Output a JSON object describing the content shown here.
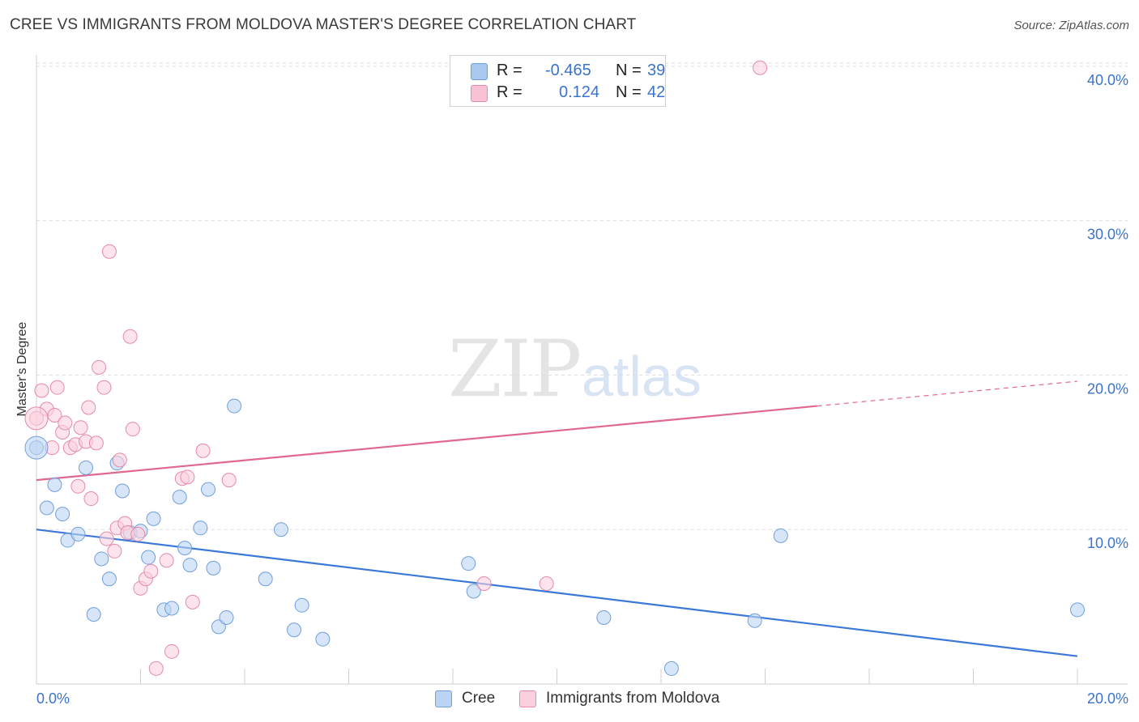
{
  "title": "CREE VS IMMIGRANTS FROM MOLDOVA MASTER'S DEGREE CORRELATION CHART",
  "source": "Source: ZipAtlas.com",
  "watermark": {
    "zip": "ZIP",
    "atlas": "atlas"
  },
  "legend_top": {
    "rows": [
      {
        "r_label": "R =",
        "r_value": "-0.465",
        "n_label": "N =",
        "n_value": "39",
        "color": "#a9c8f0",
        "border": "#6f9fdc"
      },
      {
        "r_label": "R =",
        "r_value": "0.124",
        "n_label": "N =",
        "n_value": "42",
        "color": "#f8c2d3",
        "border": "#e58aa8"
      }
    ]
  },
  "legend_bottom": [
    {
      "label": "Cree",
      "color": "#bcd4f4",
      "border": "#6f9fdc"
    },
    {
      "label": "Immigrants from Moldova",
      "color": "#fbd0de",
      "border": "#e58aa8"
    }
  ],
  "chart_data": {
    "type": "scatter",
    "title": "CREE VS IMMIGRANTS FROM MOLDOVA MASTER'S DEGREE CORRELATION CHART",
    "xlabel": "",
    "ylabel": "Master's Degree",
    "xlim": [
      0,
      20
    ],
    "ylim": [
      0,
      40
    ],
    "x_tick_labels": [
      "0.0%",
      "20.0%"
    ],
    "y_ticks": [
      10,
      20,
      30,
      40
    ],
    "y_tick_labels": [
      "10.0%",
      "20.0%",
      "30.0%",
      "40.0%"
    ],
    "grid": true,
    "series": [
      {
        "name": "Cree",
        "color": "#6f9fdc",
        "fill": "#bcd4f4",
        "trend": {
          "x": [
            0,
            20
          ],
          "y": [
            10.0,
            1.8
          ],
          "color": "#3b78d8",
          "dashed_from": null
        },
        "points": [
          [
            0.0,
            15.3
          ],
          [
            0.2,
            11.4
          ],
          [
            0.35,
            12.9
          ],
          [
            0.5,
            11.0
          ],
          [
            0.6,
            9.3
          ],
          [
            0.8,
            9.7
          ],
          [
            0.95,
            14.0
          ],
          [
            1.1,
            4.5
          ],
          [
            1.25,
            8.1
          ],
          [
            1.4,
            6.8
          ],
          [
            1.55,
            14.3
          ],
          [
            1.65,
            12.5
          ],
          [
            1.8,
            9.8
          ],
          [
            2.0,
            9.9
          ],
          [
            2.15,
            8.2
          ],
          [
            2.25,
            10.7
          ],
          [
            2.45,
            4.8
          ],
          [
            2.6,
            4.9
          ],
          [
            2.75,
            12.1
          ],
          [
            2.85,
            8.8
          ],
          [
            2.95,
            7.7
          ],
          [
            3.15,
            10.1
          ],
          [
            3.3,
            12.6
          ],
          [
            3.4,
            7.5
          ],
          [
            3.5,
            3.7
          ],
          [
            3.65,
            4.3
          ],
          [
            3.8,
            18.0
          ],
          [
            4.4,
            6.8
          ],
          [
            4.7,
            10.0
          ],
          [
            4.95,
            3.5
          ],
          [
            5.1,
            5.1
          ],
          [
            5.5,
            2.9
          ],
          [
            8.3,
            7.8
          ],
          [
            8.4,
            6.0
          ],
          [
            10.9,
            4.3
          ],
          [
            12.2,
            1.0
          ],
          [
            13.8,
            4.1
          ],
          [
            14.3,
            9.6
          ],
          [
            20.0,
            4.8
          ]
        ]
      },
      {
        "name": "Immigrants from Moldova",
        "color": "#e58aa8",
        "fill": "#fbd0de",
        "trend": {
          "x": [
            0,
            20
          ],
          "y": [
            13.2,
            19.6
          ],
          "color": "#e06890",
          "dashed_from": 15.0
        },
        "points": [
          [
            0.0,
            17.2
          ],
          [
            0.1,
            19.0
          ],
          [
            0.2,
            17.8
          ],
          [
            0.3,
            15.3
          ],
          [
            0.35,
            17.4
          ],
          [
            0.4,
            19.2
          ],
          [
            0.5,
            16.3
          ],
          [
            0.55,
            16.9
          ],
          [
            0.65,
            15.3
          ],
          [
            0.75,
            15.5
          ],
          [
            0.8,
            12.8
          ],
          [
            0.85,
            16.6
          ],
          [
            0.95,
            15.7
          ],
          [
            1.0,
            17.9
          ],
          [
            1.05,
            12.0
          ],
          [
            1.15,
            15.6
          ],
          [
            1.2,
            20.5
          ],
          [
            1.3,
            19.2
          ],
          [
            1.35,
            9.4
          ],
          [
            1.4,
            28.0
          ],
          [
            1.5,
            8.6
          ],
          [
            1.55,
            10.1
          ],
          [
            1.6,
            14.5
          ],
          [
            1.7,
            10.4
          ],
          [
            1.75,
            9.8
          ],
          [
            1.8,
            22.5
          ],
          [
            1.85,
            16.5
          ],
          [
            1.95,
            9.7
          ],
          [
            2.0,
            6.2
          ],
          [
            2.1,
            6.8
          ],
          [
            2.2,
            7.3
          ],
          [
            2.3,
            1.0
          ],
          [
            2.5,
            8.0
          ],
          [
            2.6,
            2.1
          ],
          [
            2.8,
            13.3
          ],
          [
            2.9,
            13.4
          ],
          [
            3.0,
            5.3
          ],
          [
            3.2,
            15.1
          ],
          [
            3.7,
            13.2
          ],
          [
            8.6,
            6.5
          ],
          [
            9.8,
            6.5
          ],
          [
            13.9,
            39.9
          ]
        ]
      }
    ]
  }
}
